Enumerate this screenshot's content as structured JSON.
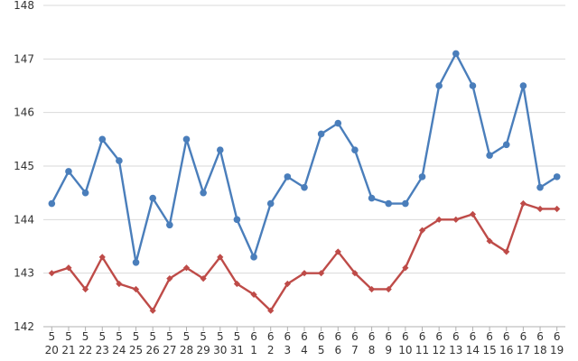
{
  "chart_data": {
    "type": "line",
    "title": "",
    "xlabel": "",
    "ylabel": "",
    "ylim": [
      142,
      148
    ],
    "yticks": [
      142,
      143,
      144,
      145,
      146,
      147,
      148
    ],
    "grid": true,
    "legend": "none",
    "categories": [
      {
        "top": "5",
        "bottom": "20"
      },
      {
        "top": "5",
        "bottom": "21"
      },
      {
        "top": "5",
        "bottom": "22"
      },
      {
        "top": "5",
        "bottom": "23"
      },
      {
        "top": "5",
        "bottom": "24"
      },
      {
        "top": "5",
        "bottom": "25"
      },
      {
        "top": "5",
        "bottom": "26"
      },
      {
        "top": "5",
        "bottom": "27"
      },
      {
        "top": "5",
        "bottom": "28"
      },
      {
        "top": "5",
        "bottom": "29"
      },
      {
        "top": "5",
        "bottom": "30"
      },
      {
        "top": "5",
        "bottom": "31"
      },
      {
        "top": "6",
        "bottom": "1"
      },
      {
        "top": "6",
        "bottom": "2"
      },
      {
        "top": "6",
        "bottom": "3"
      },
      {
        "top": "6",
        "bottom": "4"
      },
      {
        "top": "6",
        "bottom": "5"
      },
      {
        "top": "6",
        "bottom": "6"
      },
      {
        "top": "6",
        "bottom": "7"
      },
      {
        "top": "6",
        "bottom": "8"
      },
      {
        "top": "6",
        "bottom": "9"
      },
      {
        "top": "6",
        "bottom": "10"
      },
      {
        "top": "6",
        "bottom": "11"
      },
      {
        "top": "6",
        "bottom": "12"
      },
      {
        "top": "6",
        "bottom": "13"
      },
      {
        "top": "6",
        "bottom": "14"
      },
      {
        "top": "6",
        "bottom": "15"
      },
      {
        "top": "6",
        "bottom": "16"
      },
      {
        "top": "6",
        "bottom": "17"
      },
      {
        "top": "6",
        "bottom": "18"
      },
      {
        "top": "6",
        "bottom": "19"
      }
    ],
    "series": [
      {
        "color": "#4a7ebb",
        "marker": "circle",
        "values": [
          144.3,
          144.9,
          144.5,
          145.5,
          145.1,
          143.2,
          144.4,
          143.9,
          145.5,
          144.5,
          145.3,
          144.0,
          143.3,
          144.3,
          144.8,
          144.6,
          145.6,
          145.8,
          145.3,
          144.4,
          144.3,
          144.3,
          144.8,
          146.5,
          147.1,
          146.5,
          145.2,
          145.4,
          146.5,
          144.6,
          144.8
        ]
      },
      {
        "color": "#be4b48",
        "marker": "diamond",
        "values": [
          143.0,
          143.1,
          142.7,
          143.3,
          142.8,
          142.7,
          142.3,
          142.9,
          143.1,
          142.9,
          143.3,
          142.8,
          142.6,
          142.3,
          142.8,
          143.0,
          143.0,
          143.4,
          143.0,
          142.7,
          142.7,
          143.1,
          143.8,
          144.0,
          144.0,
          144.1,
          143.6,
          143.4,
          144.3,
          144.2,
          144.2
        ]
      }
    ]
  }
}
